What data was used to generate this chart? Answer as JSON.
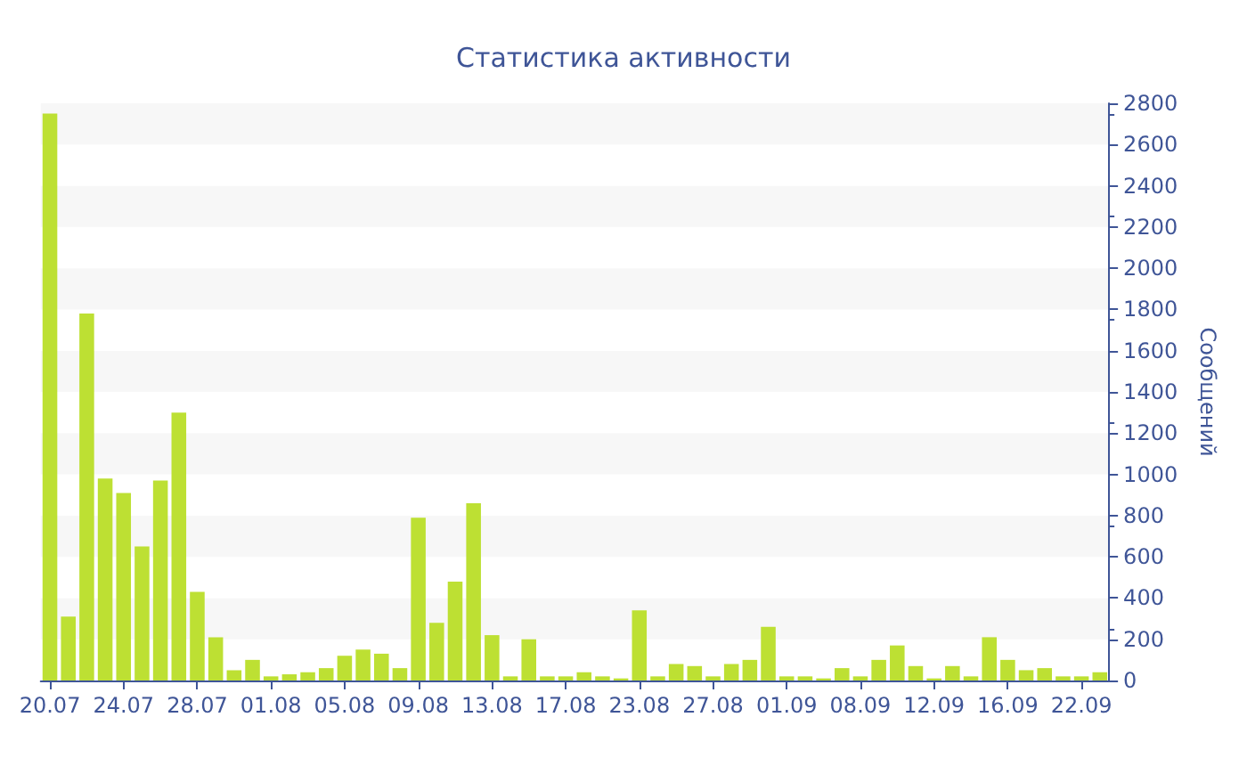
{
  "chart_data": {
    "type": "bar",
    "title": "Статистика активности",
    "ylabel": "Сообщений",
    "color": "#bde033",
    "categories": [
      "20.07",
      null,
      null,
      null,
      "24.07",
      null,
      null,
      null,
      "28.07",
      null,
      null,
      null,
      "01.08",
      null,
      null,
      null,
      "05.08",
      null,
      null,
      null,
      "09.08",
      null,
      null,
      null,
      "13.08",
      null,
      null,
      null,
      "17.08",
      null,
      null,
      null,
      "23.08",
      null,
      null,
      null,
      "27.08",
      null,
      null,
      null,
      "01.09",
      null,
      null,
      null,
      "08.09",
      null,
      null,
      null,
      "12.09",
      null,
      null,
      null,
      "16.09",
      null,
      null,
      null,
      "22.09",
      null
    ],
    "values": [
      2750,
      310,
      1780,
      980,
      910,
      650,
      970,
      1300,
      430,
      210,
      50,
      100,
      20,
      30,
      40,
      60,
      120,
      150,
      130,
      60,
      790,
      280,
      480,
      860,
      220,
      20,
      200,
      20,
      20,
      40,
      20,
      10,
      340,
      20,
      80,
      70,
      20,
      80,
      100,
      260,
      20,
      20,
      10,
      60,
      20,
      100,
      170,
      70,
      10,
      70,
      20,
      210,
      100,
      50,
      60,
      20,
      20,
      40
    ],
    "ylim": [
      0,
      2800
    ],
    "yticks": [
      0,
      200,
      400,
      600,
      800,
      1000,
      1200,
      1400,
      1600,
      1800,
      2000,
      2200,
      2400,
      2600,
      2800
    ]
  }
}
